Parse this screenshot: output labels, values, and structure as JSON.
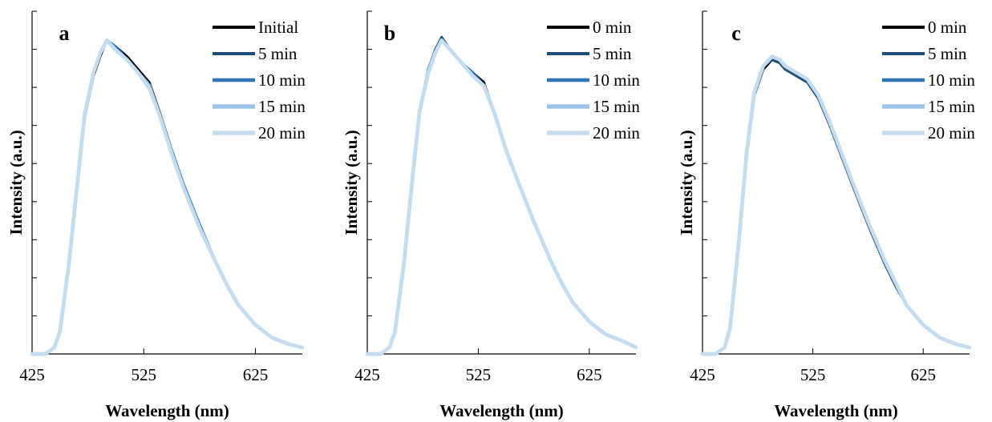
{
  "colors": {
    "series": [
      "#000000",
      "#1f4e79",
      "#2e75b6",
      "#9dc3e6",
      "#c5dcef"
    ],
    "axis": "#000000"
  },
  "chart_data": [
    {
      "type": "line",
      "panel_label": "a",
      "xlabel": "Wavelength (nm)",
      "ylabel": "Intensity (a.u.)",
      "xlim": [
        425,
        667
      ],
      "ylim": [
        0,
        1.06
      ],
      "xticks": [
        425,
        525,
        625
      ],
      "y_tick_labels": false,
      "grid": false,
      "legend_position": "top-right",
      "x": [
        425,
        437,
        445,
        450,
        458,
        465,
        472,
        480,
        486,
        492,
        500,
        510,
        520,
        530,
        540,
        550,
        560,
        575,
        590,
        600,
        610,
        625,
        640,
        655,
        667
      ],
      "series": [
        {
          "name": "Initial",
          "values": [
            0.0,
            0.0,
            0.02,
            0.07,
            0.27,
            0.5,
            0.73,
            0.86,
            0.92,
            0.97,
            0.95,
            0.92,
            0.88,
            0.84,
            0.74,
            0.63,
            0.53,
            0.4,
            0.28,
            0.21,
            0.15,
            0.09,
            0.05,
            0.03,
            0.02
          ]
        },
        {
          "name": "5 min",
          "values": [
            0.0,
            0.0,
            0.02,
            0.07,
            0.28,
            0.51,
            0.74,
            0.87,
            0.93,
            0.97,
            0.95,
            0.91,
            0.87,
            0.83,
            0.74,
            0.63,
            0.53,
            0.4,
            0.28,
            0.21,
            0.15,
            0.09,
            0.05,
            0.03,
            0.02
          ]
        },
        {
          "name": "10 min",
          "values": [
            0.0,
            0.0,
            0.02,
            0.07,
            0.28,
            0.51,
            0.74,
            0.87,
            0.93,
            0.97,
            0.95,
            0.91,
            0.87,
            0.83,
            0.73,
            0.63,
            0.53,
            0.4,
            0.28,
            0.21,
            0.15,
            0.09,
            0.05,
            0.03,
            0.02
          ]
        },
        {
          "name": "15 min",
          "values": [
            0.0,
            0.0,
            0.02,
            0.07,
            0.28,
            0.51,
            0.74,
            0.87,
            0.93,
            0.97,
            0.94,
            0.91,
            0.87,
            0.83,
            0.73,
            0.62,
            0.52,
            0.39,
            0.28,
            0.21,
            0.15,
            0.09,
            0.05,
            0.03,
            0.02
          ]
        },
        {
          "name": "20 min",
          "values": [
            0.0,
            0.0,
            0.02,
            0.07,
            0.28,
            0.51,
            0.74,
            0.87,
            0.93,
            0.97,
            0.94,
            0.91,
            0.87,
            0.82,
            0.73,
            0.62,
            0.52,
            0.39,
            0.28,
            0.21,
            0.15,
            0.09,
            0.05,
            0.03,
            0.02
          ]
        }
      ]
    },
    {
      "type": "line",
      "panel_label": "b",
      "xlabel": "Wavelength (nm)",
      "ylabel": "Intensity (a.u.)",
      "xlim": [
        425,
        667
      ],
      "ylim": [
        0,
        1.06
      ],
      "xticks": [
        425,
        525,
        625
      ],
      "y_tick_labels": false,
      "grid": false,
      "legend_position": "top-right",
      "x": [
        425,
        437,
        445,
        450,
        458,
        465,
        472,
        480,
        486,
        492,
        500,
        510,
        520,
        530,
        540,
        550,
        560,
        575,
        590,
        600,
        610,
        625,
        640,
        655,
        667
      ],
      "series": [
        {
          "name": "0 min",
          "values": [
            0.0,
            0.0,
            0.02,
            0.07,
            0.27,
            0.52,
            0.74,
            0.87,
            0.93,
            0.97,
            0.94,
            0.9,
            0.87,
            0.84,
            0.74,
            0.63,
            0.54,
            0.41,
            0.29,
            0.22,
            0.16,
            0.1,
            0.06,
            0.04,
            0.02
          ]
        },
        {
          "name": "5 min",
          "values": [
            0.0,
            0.0,
            0.02,
            0.07,
            0.28,
            0.52,
            0.75,
            0.88,
            0.94,
            0.98,
            0.94,
            0.9,
            0.87,
            0.83,
            0.74,
            0.63,
            0.54,
            0.41,
            0.29,
            0.22,
            0.16,
            0.1,
            0.06,
            0.04,
            0.02
          ]
        },
        {
          "name": "10 min",
          "values": [
            0.0,
            0.0,
            0.02,
            0.07,
            0.28,
            0.52,
            0.75,
            0.88,
            0.93,
            0.97,
            0.94,
            0.9,
            0.87,
            0.83,
            0.74,
            0.63,
            0.54,
            0.41,
            0.29,
            0.22,
            0.16,
            0.1,
            0.06,
            0.04,
            0.02
          ]
        },
        {
          "name": "15 min",
          "values": [
            0.0,
            0.0,
            0.02,
            0.07,
            0.28,
            0.52,
            0.75,
            0.87,
            0.93,
            0.97,
            0.94,
            0.9,
            0.86,
            0.83,
            0.74,
            0.63,
            0.54,
            0.41,
            0.29,
            0.22,
            0.16,
            0.1,
            0.06,
            0.04,
            0.02
          ]
        },
        {
          "name": "20 min",
          "values": [
            0.0,
            0.0,
            0.02,
            0.07,
            0.28,
            0.52,
            0.75,
            0.87,
            0.93,
            0.97,
            0.94,
            0.9,
            0.86,
            0.83,
            0.74,
            0.63,
            0.54,
            0.41,
            0.29,
            0.22,
            0.16,
            0.1,
            0.06,
            0.04,
            0.02
          ]
        }
      ]
    },
    {
      "type": "line",
      "panel_label": "c",
      "xlabel": "Wavelength (nm)",
      "ylabel": "Intensity (a.u.)",
      "xlim": [
        425,
        667
      ],
      "ylim": [
        0,
        1.06
      ],
      "xticks": [
        425,
        525,
        625
      ],
      "y_tick_labels": false,
      "grid": false,
      "legend_position": "top-right",
      "x": [
        425,
        437,
        445,
        450,
        458,
        465,
        472,
        480,
        488,
        495,
        500,
        510,
        520,
        530,
        540,
        550,
        560,
        575,
        590,
        600,
        610,
        625,
        640,
        655,
        667
      ],
      "series": [
        {
          "name": "0 min",
          "values": [
            0.0,
            0.0,
            0.02,
            0.08,
            0.35,
            0.62,
            0.8,
            0.88,
            0.91,
            0.9,
            0.88,
            0.86,
            0.84,
            0.79,
            0.71,
            0.62,
            0.53,
            0.4,
            0.28,
            0.21,
            0.15,
            0.09,
            0.05,
            0.03,
            0.02
          ]
        },
        {
          "name": "5 min",
          "values": [
            0.0,
            0.0,
            0.02,
            0.08,
            0.35,
            0.62,
            0.8,
            0.89,
            0.91,
            0.9,
            0.88,
            0.86,
            0.84,
            0.79,
            0.71,
            0.62,
            0.53,
            0.4,
            0.28,
            0.21,
            0.15,
            0.09,
            0.05,
            0.03,
            0.02
          ]
        },
        {
          "name": "10 min",
          "values": [
            0.0,
            0.0,
            0.02,
            0.08,
            0.35,
            0.62,
            0.8,
            0.89,
            0.92,
            0.91,
            0.89,
            0.87,
            0.85,
            0.8,
            0.72,
            0.63,
            0.54,
            0.41,
            0.29,
            0.22,
            0.15,
            0.09,
            0.05,
            0.03,
            0.02
          ]
        },
        {
          "name": "15 min",
          "values": [
            0.0,
            0.0,
            0.02,
            0.08,
            0.35,
            0.62,
            0.81,
            0.89,
            0.92,
            0.91,
            0.89,
            0.87,
            0.85,
            0.8,
            0.72,
            0.63,
            0.54,
            0.41,
            0.29,
            0.22,
            0.15,
            0.09,
            0.05,
            0.03,
            0.02
          ]
        },
        {
          "name": "20 min",
          "values": [
            0.0,
            0.0,
            0.02,
            0.08,
            0.35,
            0.62,
            0.81,
            0.89,
            0.92,
            0.91,
            0.89,
            0.87,
            0.85,
            0.8,
            0.72,
            0.63,
            0.54,
            0.41,
            0.29,
            0.22,
            0.15,
            0.09,
            0.05,
            0.03,
            0.02
          ]
        }
      ]
    }
  ]
}
